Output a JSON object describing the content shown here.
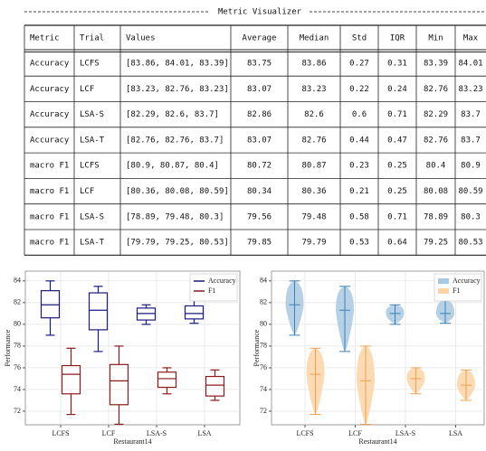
{
  "title": "Metric Visualizer",
  "table": {
    "columns": [
      "Metric",
      "Trial",
      "Values",
      "Average",
      "Median",
      "Std",
      "IQR",
      "Min",
      "Max"
    ],
    "rows": [
      [
        "Accuracy",
        "LCFS",
        "[83.86, 84.01, 83.39]",
        83.75,
        83.86,
        0.27,
        0.31,
        83.39,
        84.01
      ],
      [
        "Accuracy",
        "LCF",
        "[83.23, 82.76, 83.23]",
        83.07,
        83.23,
        0.22,
        0.24,
        82.76,
        83.23
      ],
      [
        "Accuracy",
        "LSA-S",
        "[82.29, 82.6, 83.7]",
        82.86,
        82.6,
        0.6,
        0.71,
        82.29,
        83.7
      ],
      [
        "Accuracy",
        "LSA-T",
        "[82.76, 82.76, 83.7]",
        83.07,
        82.76,
        0.44,
        0.47,
        82.76,
        83.7
      ],
      [
        "macro F1",
        "LCFS",
        "[80.9, 80.87, 80.4]",
        80.72,
        80.87,
        0.23,
        0.25,
        80.4,
        80.9
      ],
      [
        "macro F1",
        "LCF",
        "[80.36, 80.08, 80.59]",
        80.34,
        80.36,
        0.21,
        0.25,
        80.08,
        80.59
      ],
      [
        "macro F1",
        "LSA-S",
        "[78.89, 79.48, 80.3]",
        79.56,
        79.48,
        0.58,
        0.71,
        78.89,
        80.3
      ],
      [
        "macro F1",
        "LSA-T",
        "[79.79, 79.25, 80.53]",
        79.85,
        79.79,
        0.53,
        0.64,
        79.25,
        80.53
      ]
    ]
  },
  "chart_data": [
    {
      "type": "box",
      "xlabel": "Restaurant14",
      "ylabel": "Performance",
      "categories": [
        "LCFS",
        "LCF",
        "LSA-S",
        "LSA"
      ],
      "ylim": [
        70.75,
        84.9
      ],
      "yticks": [
        72,
        74,
        76,
        78,
        80,
        82,
        84
      ],
      "grid": true,
      "legend": "upper right",
      "series": [
        {
          "name": "Accuracy",
          "color": "#1a1a80",
          "min": [
            79.0,
            77.5,
            80.0,
            80.1
          ],
          "q1": [
            80.6,
            79.5,
            80.4,
            80.5
          ],
          "median": [
            81.8,
            81.3,
            81.0,
            81.0
          ],
          "q3": [
            83.1,
            82.9,
            81.5,
            81.7
          ],
          "max": [
            84.0,
            83.5,
            81.8,
            82.3
          ]
        },
        {
          "name": "F1",
          "color": "#8b1a1a",
          "min": [
            71.7,
            70.8,
            73.6,
            73.0
          ],
          "q1": [
            73.6,
            72.6,
            74.2,
            73.4
          ],
          "median": [
            75.4,
            74.8,
            75.0,
            74.4
          ],
          "q3": [
            76.2,
            76.3,
            75.6,
            75.2
          ],
          "max": [
            77.8,
            78.0,
            76.0,
            75.8
          ]
        }
      ]
    },
    {
      "type": "violin",
      "xlabel": "Restaurant14",
      "ylabel": "Performance",
      "categories": [
        "LCFS",
        "LCF",
        "LSA-S",
        "LSA"
      ],
      "ylim": [
        70.75,
        84.9
      ],
      "yticks": [
        72,
        74,
        76,
        78,
        80,
        82,
        84
      ],
      "grid": true,
      "legend": "upper right",
      "series": [
        {
          "name": "Accuracy",
          "color": "#a9c9e2",
          "line_color": "#3a7fb5",
          "min": [
            79.0,
            77.5,
            80.0,
            80.1
          ],
          "median": [
            81.8,
            81.3,
            81.0,
            81.0
          ],
          "max": [
            84.0,
            83.5,
            81.8,
            82.3
          ]
        },
        {
          "name": "F1",
          "color": "#fcd3a6",
          "line_color": "#f0a050",
          "min": [
            71.7,
            70.8,
            73.6,
            73.0
          ],
          "median": [
            75.4,
            74.8,
            75.0,
            74.4
          ],
          "max": [
            77.8,
            78.0,
            76.0,
            75.8
          ]
        }
      ]
    }
  ]
}
